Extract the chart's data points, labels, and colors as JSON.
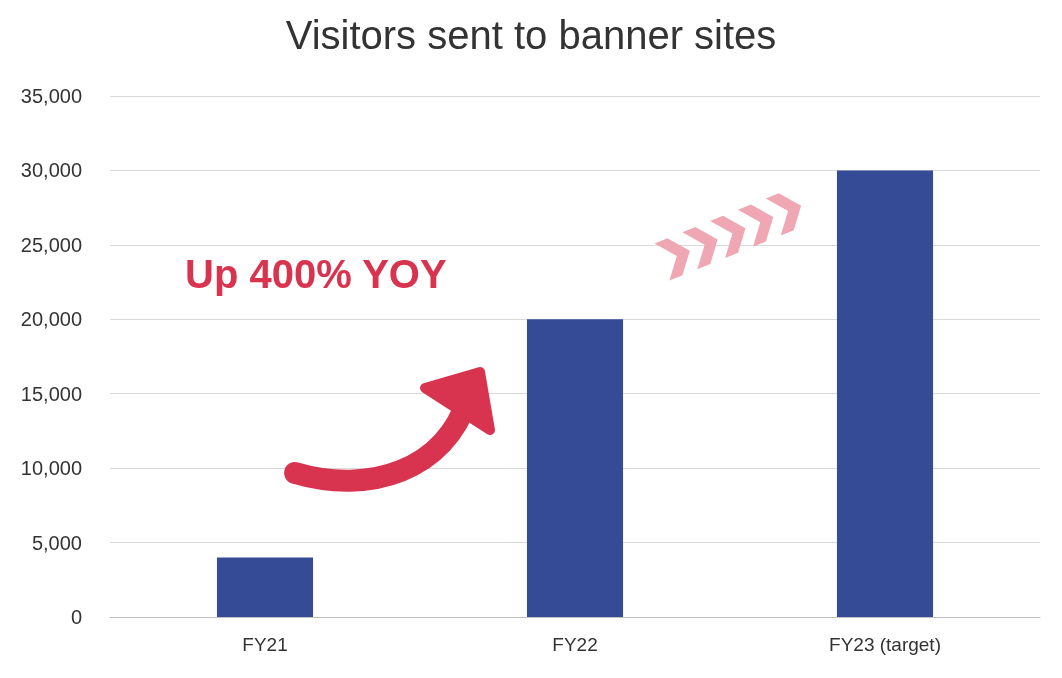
{
  "chart_data": {
    "type": "bar",
    "title": "Visitors sent to banner sites",
    "categories": [
      "FY21",
      "FY22",
      "FY23 (target)"
    ],
    "values": [
      4000,
      20000,
      30000
    ],
    "color": "#354b96",
    "ylim": [
      0,
      35000
    ],
    "yticks": [
      0,
      {
        "value": 5000,
        "label": "5,000"
      },
      {
        "value": 10000,
        "label": "10,000"
      },
      {
        "value": 15000,
        "label": "15,000"
      },
      {
        "value": 20000,
        "label": "20,000"
      },
      {
        "value": 25000,
        "label": "25,000"
      },
      {
        "value": 30000,
        "label": "30,000"
      },
      {
        "value": 35000,
        "label": "35,000"
      }
    ],
    "grid": "y",
    "annotations": [
      "Up 400% YOY"
    ]
  }
}
